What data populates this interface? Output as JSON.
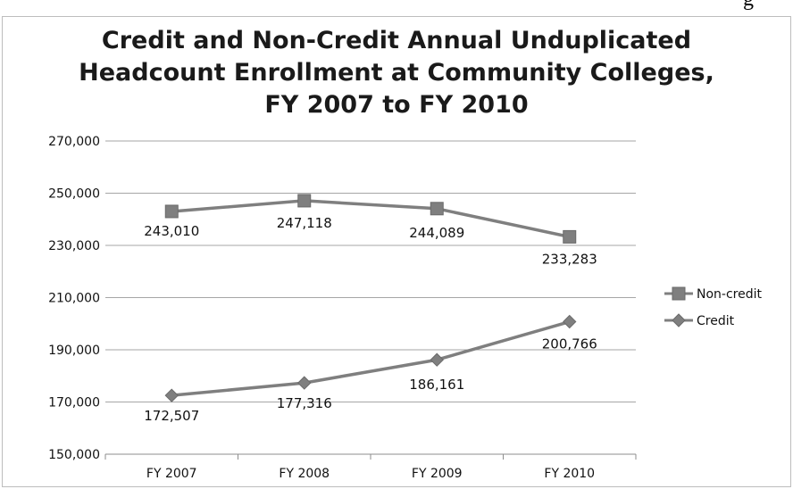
{
  "page": {
    "top_fragment": "g"
  },
  "chart_data": {
    "type": "line",
    "title_lines": [
      "Credit and Non-Credit Annual Unduplicated",
      "Headcount Enrollment at Community Colleges,",
      "FY 2007 to FY 2010"
    ],
    "categories": [
      "FY 2007",
      "FY 2008",
      "FY 2009",
      "FY 2010"
    ],
    "ylim": [
      150000,
      270000
    ],
    "y_ticks": [
      150000,
      170000,
      190000,
      210000,
      230000,
      250000,
      270000
    ],
    "y_tick_labels": [
      "150,000",
      "170,000",
      "190,000",
      "210,000",
      "230,000",
      "250,000",
      "270,000"
    ],
    "grid": "horizontal",
    "legend_position": "right",
    "series": [
      {
        "name": "Non-credit",
        "marker": "square",
        "color": "#7f7f7f",
        "values": [
          243010,
          247118,
          244089,
          233283
        ],
        "labels": [
          "243,010",
          "247,118",
          "244,089",
          "233,283"
        ]
      },
      {
        "name": "Credit",
        "marker": "diamond",
        "color": "#7f7f7f",
        "values": [
          172507,
          177316,
          186161,
          200766
        ],
        "labels": [
          "172,507",
          "177,316",
          "186,161",
          "200,766"
        ]
      }
    ]
  }
}
